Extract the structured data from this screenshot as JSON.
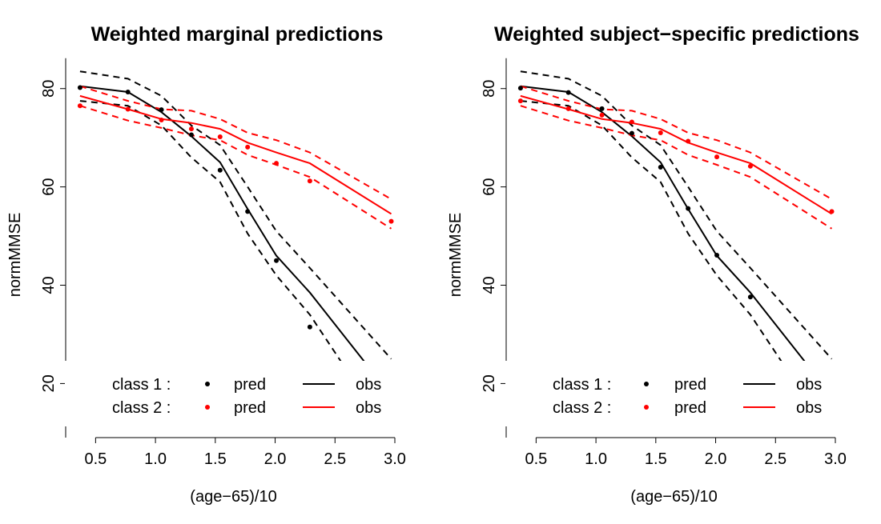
{
  "chart_data": [
    {
      "type": "line",
      "title": "Weighted marginal predictions",
      "xlabel": "(age−65)/10",
      "ylabel": "normMMSE",
      "xlim": [
        0.25,
        3.0
      ],
      "ylim": [
        9,
        85
      ],
      "xticks": [
        "0.5",
        "1.0",
        "1.5",
        "2.0",
        "2.5",
        "3.0"
      ],
      "yticks": [
        "20",
        "40",
        "60",
        "80"
      ],
      "legend": {
        "placement": "bottom",
        "rows": [
          {
            "label": "class 1 :",
            "pred": "pred",
            "obs": "obs",
            "color": "#000000"
          },
          {
            "label": "class 2 :",
            "pred": "pred",
            "obs": "obs",
            "color": "#ff0000"
          }
        ]
      },
      "series": [
        {
          "name": "class 1",
          "color": "#000000",
          "x": [
            0.37,
            0.77,
            1.05,
            1.3,
            1.54,
            1.77,
            2.01,
            2.29,
            2.76
          ],
          "pred": [
            80.2,
            79.3,
            75.7,
            70.6,
            63.4,
            55.0,
            45.0,
            31.5,
            null
          ],
          "obs": [
            80.5,
            79.3,
            75.2,
            70.3,
            65.0,
            55.5,
            46.0,
            38.5,
            24.0
          ],
          "upper": [
            83.5,
            82.0,
            78.5,
            72.5,
            68.5,
            60.0,
            51.0,
            43.5,
            25.0
          ],
          "lower": [
            77.5,
            76.5,
            72.5,
            66.0,
            61.0,
            50.5,
            42.0,
            34.0,
            24.5
          ],
          "x_upper_end": 2.97,
          "x_lower_end": 2.55
        },
        {
          "name": "class 2",
          "color": "#ff0000",
          "x": [
            0.37,
            0.77,
            1.05,
            1.3,
            1.54,
            1.77,
            2.01,
            2.29,
            2.97
          ],
          "pred": [
            76.5,
            75.8,
            73.6,
            71.8,
            70.2,
            68.1,
            64.8,
            61.2,
            53.0
          ],
          "obs": [
            78.5,
            75.8,
            73.8,
            73.0,
            71.8,
            69.0,
            67.0,
            64.8,
            54.5
          ],
          "upper": [
            80.5,
            77.5,
            75.8,
            75.5,
            73.8,
            71.0,
            69.5,
            67.0,
            57.5
          ],
          "lower": [
            76.5,
            73.5,
            72.0,
            70.5,
            69.5,
            66.5,
            64.5,
            62.0,
            51.5
          ]
        }
      ]
    },
    {
      "type": "line",
      "title": "Weighted subject−specific predictions",
      "xlabel": "(age−65)/10",
      "ylabel": "normMMSE",
      "xlim": [
        0.25,
        3.0
      ],
      "ylim": [
        9,
        85
      ],
      "xticks": [
        "0.5",
        "1.0",
        "1.5",
        "2.0",
        "2.5",
        "3.0"
      ],
      "yticks": [
        "20",
        "40",
        "60",
        "80"
      ],
      "legend": {
        "placement": "bottom",
        "rows": [
          {
            "label": "class 1 :",
            "pred": "pred",
            "obs": "obs",
            "color": "#000000"
          },
          {
            "label": "class 2 :",
            "pred": "pred",
            "obs": "obs",
            "color": "#ff0000"
          }
        ]
      },
      "series": [
        {
          "name": "class 1",
          "color": "#000000",
          "x": [
            0.37,
            0.77,
            1.05,
            1.3,
            1.54,
            1.77,
            2.01,
            2.29,
            2.76
          ],
          "pred": [
            80.1,
            79.2,
            75.9,
            70.9,
            64.0,
            55.6,
            46.1,
            37.6,
            null
          ],
          "obs": [
            80.5,
            79.3,
            75.2,
            70.3,
            65.0,
            55.5,
            46.0,
            38.5,
            24.0
          ],
          "upper": [
            83.5,
            82.0,
            78.5,
            72.5,
            68.5,
            60.0,
            51.0,
            43.5,
            25.0
          ],
          "lower": [
            77.5,
            76.5,
            72.5,
            66.0,
            61.0,
            50.5,
            42.0,
            34.0,
            24.5
          ],
          "x_upper_end": 2.97,
          "x_lower_end": 2.55
        },
        {
          "name": "class 2",
          "color": "#ff0000",
          "x": [
            0.37,
            0.77,
            1.05,
            1.3,
            1.54,
            1.77,
            2.01,
            2.29,
            2.97
          ],
          "pred": [
            77.5,
            75.9,
            74.6,
            73.2,
            71.0,
            69.3,
            66.1,
            64.2,
            55.0
          ],
          "obs": [
            78.5,
            75.8,
            73.8,
            73.0,
            71.8,
            69.0,
            67.0,
            64.8,
            54.5
          ],
          "upper": [
            80.5,
            77.5,
            75.8,
            75.5,
            73.8,
            71.0,
            69.5,
            67.0,
            57.5
          ],
          "lower": [
            76.5,
            73.5,
            72.0,
            70.5,
            69.5,
            66.5,
            64.5,
            62.0,
            51.5
          ]
        }
      ]
    }
  ]
}
